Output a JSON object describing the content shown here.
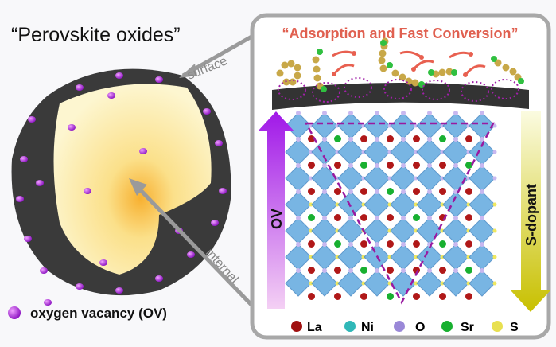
{
  "left": {
    "title": "“Perovskite oxides”",
    "surface_label": "surface",
    "internal_label": "internal",
    "legend_label": "oxygen vacancy (OV)"
  },
  "right": {
    "title": "“Adsorption and Fast Conversion”",
    "ov_label": "OV",
    "s_dopant_label": "S-dopant",
    "legend": [
      {
        "label": "La",
        "color": "#a01010"
      },
      {
        "label": "Ni",
        "color": "#30b8b8"
      },
      {
        "label": "O",
        "color": "#9a88d8"
      },
      {
        "label": "Sr",
        "color": "#18b030"
      },
      {
        "label": "S",
        "color": "#e8e050"
      }
    ]
  },
  "colors": {
    "ov": "#b020e0",
    "title_red": "#e06050",
    "panel_border": "#a8a8a8",
    "octahedra": "#6aaee0"
  }
}
